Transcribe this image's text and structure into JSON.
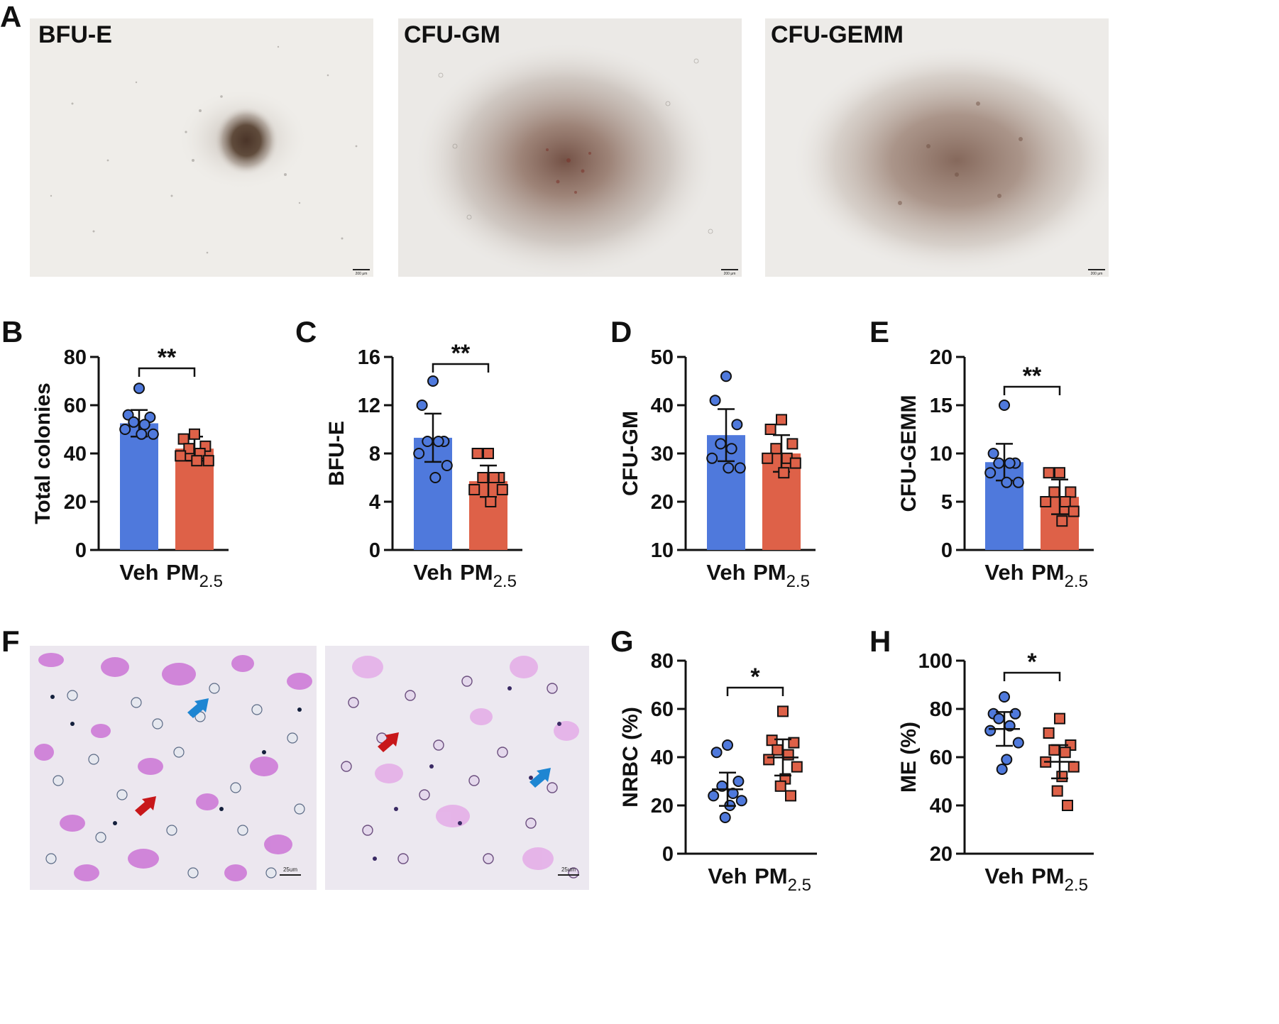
{
  "figure": {
    "panels": {
      "A": "A",
      "B": "B",
      "C": "C",
      "D": "D",
      "E": "E",
      "F": "F",
      "G": "G",
      "H": "H"
    },
    "colony_images": [
      {
        "label": "BFU-E",
        "scale": "200 μm"
      },
      {
        "label": "CFU-GM",
        "scale": "200 μm"
      },
      {
        "label": "CFU-GEMM",
        "scale": "200 μm"
      }
    ],
    "smear_images": [
      {
        "scale": "25um"
      },
      {
        "scale": "25um"
      }
    ]
  },
  "colors": {
    "veh": "#4f79dc",
    "pm": "#de6148",
    "blue_arrow": "#1e86d2",
    "red_arrow": "#c8171a"
  },
  "chart_data": [
    {
      "id": "B",
      "type": "bar",
      "title": "",
      "ylabel": "Total colonies",
      "ylim": [
        0,
        80
      ],
      "yticks": [
        "0",
        "20",
        "40",
        "60",
        "80"
      ],
      "categories": [
        "Veh",
        "PM2.5"
      ],
      "means": [
        52.5,
        42
      ],
      "errors": [
        5.5,
        5
      ],
      "points": [
        [
          67,
          56,
          55,
          53,
          52,
          50,
          48,
          48
        ],
        [
          48,
          46,
          43,
          42,
          40,
          39,
          37,
          37
        ]
      ],
      "significance": "**"
    },
    {
      "id": "C",
      "type": "bar",
      "title": "",
      "ylabel": "BFU-E",
      "ylim": [
        0,
        16
      ],
      "yticks": [
        "0",
        "4",
        "8",
        "12",
        "16"
      ],
      "categories": [
        "Veh",
        "PM2.5"
      ],
      "means": [
        9.3,
        5.7
      ],
      "errors": [
        2.0,
        1.3
      ],
      "points": [
        [
          14,
          12,
          9,
          9,
          9,
          8,
          7,
          6
        ],
        [
          8,
          8,
          6,
          6,
          6,
          5,
          5,
          4
        ]
      ],
      "significance": "**"
    },
    {
      "id": "D",
      "type": "bar",
      "title": "",
      "ylabel": "CFU-GM",
      "ylim": [
        10,
        50
      ],
      "yticks": [
        "10",
        "20",
        "30",
        "40",
        "50"
      ],
      "categories": [
        "Veh",
        "PM2.5"
      ],
      "means": [
        33.8,
        30
      ],
      "errors": [
        5.4,
        3.8
      ],
      "points": [
        [
          46,
          41,
          36,
          32,
          31,
          29,
          27,
          27
        ],
        [
          37,
          35,
          32,
          31,
          29,
          29,
          28,
          26
        ]
      ],
      "significance": ""
    },
    {
      "id": "E",
      "type": "bar",
      "title": "",
      "ylabel": "CFU-GEMM",
      "ylim": [
        0,
        20
      ],
      "yticks": [
        "0",
        "5",
        "10",
        "15",
        "20"
      ],
      "categories": [
        "Veh",
        "PM2.5"
      ],
      "means": [
        9.1,
        5.5
      ],
      "errors": [
        1.9,
        1.8
      ],
      "points": [
        [
          15,
          10,
          9,
          9,
          9,
          8,
          7,
          7
        ],
        [
          8,
          8,
          6,
          6,
          5,
          5,
          4,
          3
        ]
      ],
      "significance": "**"
    },
    {
      "id": "G",
      "type": "scatter",
      "title": "",
      "ylabel": "NRBC (%)",
      "ylim": [
        0,
        80
      ],
      "yticks": [
        "0",
        "20",
        "40",
        "60",
        "80"
      ],
      "categories": [
        "Veh",
        "PM2.5"
      ],
      "means": [
        26.7,
        39.9
      ],
      "errors": [
        6.9,
        7.5
      ],
      "points": [
        [
          45,
          42,
          30,
          28,
          25,
          24,
          22,
          20,
          15
        ],
        [
          59,
          47,
          46,
          43,
          41,
          39,
          36,
          31,
          28,
          24
        ]
      ],
      "significance": "*"
    },
    {
      "id": "H",
      "type": "scatter",
      "title": "",
      "ylabel": "ME (%)",
      "ylim": [
        20,
        100
      ],
      "yticks": [
        "20",
        "40",
        "60",
        "80",
        "100"
      ],
      "categories": [
        "Veh",
        "PM2.5"
      ],
      "means": [
        71.7,
        58.1
      ],
      "errors": [
        7.0,
        6.9
      ],
      "points": [
        [
          85,
          78,
          78,
          76,
          73,
          71,
          66,
          59,
          55
        ],
        [
          76,
          70,
          65,
          63,
          62,
          58,
          56,
          52,
          46,
          40
        ]
      ],
      "significance": "*"
    }
  ]
}
